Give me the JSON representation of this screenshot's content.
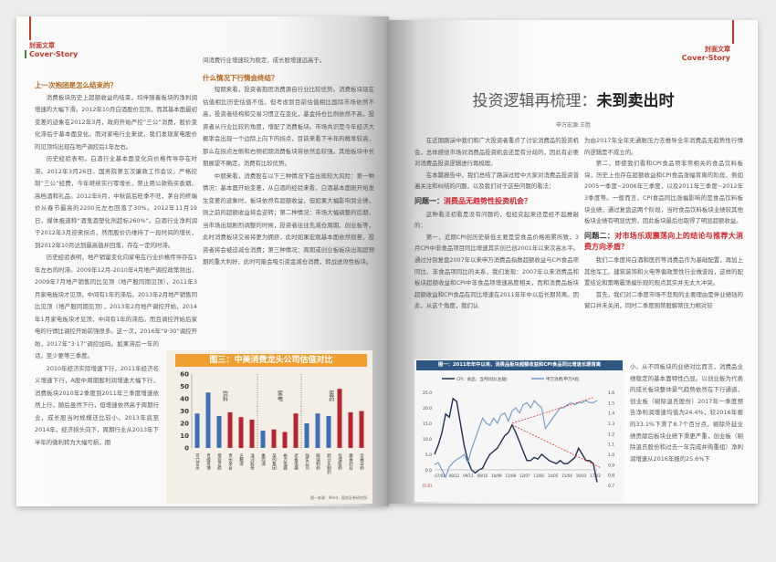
{
  "left_page": {
    "header": {
      "cn": "封面文章",
      "en": "Cover·Story"
    },
    "col1": [
      {
        "type": "h",
        "text": "上一次抱团是怎么结束的？"
      },
      {
        "type": "p",
        "text": "消费板块历史上超额收益的结束，均伴随着板块的净利润增速的大幅下滑。2012年10月白酒股价见顶，而其基本面最初变差的迹象在2012年3月，政府开始严控“三公”消费，股价变化滞后于基本面变化。而对家电行业来说，我们发现家电股价的见顶均出现在地产调控后1年左右。"
      },
      {
        "type": "p",
        "text": "历史经验表明，白酒行业基本面变化向价格传导存在时滞。2012年3月26日，国务院第五次廉政工作会议，严格控制“三公”经费，今年继续实行零增长，禁止用公款购买香烟、高档酒和礼品。2012年9月，中秋前后旺季不旺，茅台的终端价从春节最高的2200元左右回落了30%。2012年11月19日，媒体报道称“酒鬼酒塑化剂超标260%”。白酒行业净利润于2012年3月迎来拐点，然而股价仍维持了一段时间的增长，到2012年10月达到最高值并回落，存在一定的时滞。"
      },
      {
        "type": "p",
        "text": "历史经验表明，地产销量变化向家电在行业价格传导存在1年左右的时滞。2009年12月-2010年4月地产调控政策频出，2009年7月地产销售同比见顶（地产股同期见顶），2011年3月家电板块才见顶，中间有1年的滞后。2013年2月地产销售同比见顶（地产股同期见顶），2013年2月地产调控开始，2014年1月家电板块才见顶，中间有1年的滞后。而且调控开始后家电的行情比调控开始前强很多。这一次，2016年“9·30”调控开始，2017年“3·17”调控加码。如果滞后一年的话，至少要等三季度。"
      },
      {
        "type": "p",
        "text": "2010年经济实际增速下行，2011年经济名义增速下行，A股中周期股利润增速大幅下行，消费板块2010年2季度到2011年三季度增速依然上行，随后虽然下行，但增速依然高于周期行业，成长股当时规模还比较小。2013年底至2014年，经济拐头向下，周期行业从2013年下半年的微利转为大幅亏损，期"
      }
    ],
    "col2": [
      {
        "type": "p0",
        "text": "间消费行业增速较为稳定，成长股增速远高于。"
      },
      {
        "type": "h",
        "text": "什么情况下行情会终结？"
      },
      {
        "type": "p",
        "text": "短期来看，投资者抱团消费源自行业比较优势。消费板块现在估值相比历史估值不低，但考虑到目前估值相比国际市场依然不高，投资者结构和交易习惯正在变化，基金持仓比例依然不高，投资者从行业比较的角度，增配了消费板块。市场共识是今年经济大概率会出现一个边际上向下的拐点，目前来看下半年的概率较高，那么在拐点左侧和右侧初期消费板块将依然会较强。其他板块中长期展望不确定，消费有比较优势。"
      },
      {
        "type": "p",
        "text": "中期来看，消费股在以下三种情况下会出现较大风险：第一种情况：基本面开始变差，从白酒的经验来看，白酒基本面刚开始发生变差的迹象时，板块依然有超额收益，但如果大幅影响到业绩，则之前的超额收益将会逆转；第二种情况：市场大幅调整的后期，当市场出现剧烈调整的时候，投资者往往先减仓周期、创业板等，此时消费板块交易将更为拥挤，此时如果宏观基本面依然很差，投资者将会被迫减仓消费；第三种情况：周期或创业板板块出现超预期的重大利好，此时可能会吸引资金减仓消费，转战进攻性板块。"
      }
    ],
    "chart_data": {
      "type": "bar",
      "title": "图三：中美消费龙头公司估值对比",
      "categories": [
        "可口可乐",
        "百威英博",
        "帝亚吉欧",
        "贵州茅台",
        "五粮液",
        "洋河股份",
        "惠而浦",
        "美的集团",
        "格力电器",
        "老板电器",
        "强生公司",
        "辉瑞制药",
        "默沙东制药",
        "恒瑞医药",
        "康美药业",
        "云南白药"
      ],
      "values": [
        28,
        45,
        26,
        29,
        25,
        23,
        14,
        15,
        13,
        28,
        20,
        28,
        26,
        48,
        29,
        30
      ],
      "colors": [
        "#3f6fb5",
        "#3f6fb5",
        "#3f6fb5",
        "#b8252f",
        "#b8252f",
        "#b8252f",
        "#3f6fb5",
        "#b8252f",
        "#b8252f",
        "#b8252f",
        "#3f6fb5",
        "#3f6fb5",
        "#3f6fb5",
        "#b8252f",
        "#b8252f",
        "#b8252f"
      ],
      "groups": [
        "饮料",
        "家电",
        "医药"
      ],
      "ylim": [
        0,
        60
      ],
      "yticks": [
        0,
        10,
        20,
        30,
        40,
        50,
        60
      ],
      "source": "图一来源：Wind，国金证券研究所",
      "title_bg": "#f0a030"
    }
  },
  "right_page": {
    "header": {
      "cn": "封面文章",
      "en": "Cover·Story"
    },
    "title_a": "投资逻辑再梳理：",
    "title_b": "未到卖出时",
    "authors": "申万宏源  王胜",
    "col1": [
      {
        "type": "p",
        "text": "在近期路演中我们和广大投资者重点了讨论消费品的投资机会，总体感觉市场对消费品投资机会还是有分歧的，因此有必要对消费品投资逻辑进行再梳理。"
      },
      {
        "type": "p",
        "text": "在本篇报告中，我们总结了路演过程中大家对消费品投资普遍关注和纠结的问题，以及我们对于这些问题的看法："
      },
      {
        "type": "q",
        "label": "问题一：",
        "text": "消费品无趋势性投资机会？"
      },
      {
        "type": "p",
        "text": "这种看法初看是没有问题的，但经究起来还是经不起推敲的："
      },
      {
        "type": "p",
        "text": "第一，近期CPI创历史新低主要是受食品价格拖累所致，3月CPI中非食品项目同比增速其实创已创2001年以来次高水平。通过分别复盘2007年以来申万消费品指数超额收益与CPI食品项同比、非食品项同比的关系，我们发现：2007年以来消费品和板块超额收益和CPI中非食品项增速高度相关，而和消费品板块超额收益和CPI食品在同比增速在2011年年中以后长期背离。因此，从这个角度，我们认"
      }
    ],
    "col2": [
      {
        "type": "p0",
        "text": "为由2017年全年无通胀压力去推导全年消费品无趋势性行情的逻辑是不成立的。"
      },
      {
        "type": "p",
        "text": "第二，即使我们看和CPI食品项非常相关的食品饮料板块，历史上也存在超额收益和CPI食品涨幅背离的阶段，例如2005一季度~2006年三季度，以及2011年三季度~2012年3季度等。一般而言，CPI食品同比涨幅影响的是食品饮料板块业绩，通过复盘这两个阶段，当时食品饮料板块业绩较其他板块业绩有明显优势，因此板块最后也取得了明显超额收益。"
      },
      {
        "type": "q",
        "label": "问题二：",
        "text": "对市场乐观震荡向上的结论与推荐大消费方向矛盾？"
      },
      {
        "type": "p",
        "text": "我们二季度将白酒和医药等消费品作为基础配置，再加上其他军工、建筑装饰和火电等偏政策性行业做波段，这样的配置结论和策略震荡偏乐观的观点其实并无太大冲突。"
      },
      {
        "type": "p",
        "text": "首先，我们对二季度市场不悲观的主要理由是伴业绩钱的窗口并未关闭，同时二季度围禁股解禁压力相对较"
      }
    ],
    "col2_narrow": [
      {
        "type": "p0",
        "text": "小。从不同板块的业绩对比而言，消费品业绩稳定的基本面特性凸显。以创业板为代表的成长板块整体景气趋势依然在下行通道，创业板（剔除温氏股份）2017年一季度预告净利润增速均值为24.4%，较2016年报的33.1%下滑了8.7个百分点，剔除外延业绩贡献后板块业绩下滑更严重，创业板（剔除温氏股份和过去一年完成并购重组）净利润增速从2016年报的25.6%下"
      }
    ],
    "chart_data": {
      "type": "line",
      "title": "图一：2011年年中以来，消费品板块超额收益和CPI食品同比增速长期背离",
      "series": [
        {
          "name": "CPI：食品：当月同比(左轴)",
          "axis": "left",
          "color": "#1f2f4f",
          "values": [
            5,
            8,
            12,
            18,
            17,
            23,
            22,
            15,
            8,
            3,
            0,
            -1,
            0,
            0.5,
            3,
            5,
            6,
            7,
            9,
            11,
            12,
            14.5,
            12,
            9,
            6,
            3,
            3,
            4,
            3.5,
            5,
            4,
            3,
            2.5,
            2,
            3,
            2,
            2,
            3,
            4,
            7,
            5,
            3,
            3,
            2,
            -4
          ]
        },
        {
          "name": "申万消费/申万A指",
          "axis": "right",
          "color": "#6f9ac8",
          "values": [
            0.9,
            0.92,
            0.85,
            0.78,
            0.88,
            0.92,
            0.95,
            0.97,
            1.0,
            0.92,
            1.05,
            1.15,
            1.25,
            1.35,
            1.3,
            1.28,
            1.35,
            1.3,
            1.38,
            1.4,
            1.32,
            1.42,
            1.45,
            1.4,
            1.48,
            1.5,
            1.45,
            1.52,
            1.48,
            1.45,
            1.25,
            1.3,
            1.35,
            1.4,
            1.45,
            1.45,
            1.48,
            1.5,
            1.48,
            1.5,
            1.5,
            1.52,
            1.5,
            1.5,
            1.52
          ]
        }
      ],
      "x_ticks": [
        "07/01",
        "08/12",
        "09/11",
        "09/10",
        "10/09",
        "11/08",
        "12/07",
        "13/06",
        "14/05",
        "15/04",
        "16/03",
        "17/02"
      ],
      "y_left": {
        "range": [
          -5,
          25
        ],
        "ticks": [
          "(5.0)",
          "0.0",
          "5.0",
          "10.0",
          "15.0",
          "20.0",
          "25.0"
        ]
      },
      "y_right": {
        "range": [
          0.7,
          1.6
        ],
        "ticks": [
          "0.7",
          "0.8",
          "0.9",
          "1.0",
          "1.1",
          "1.2",
          "1.3",
          "1.4",
          "1.5",
          "1.6"
        ]
      },
      "trend_color": "#e03030",
      "title_bg": "#2f5784"
    }
  }
}
